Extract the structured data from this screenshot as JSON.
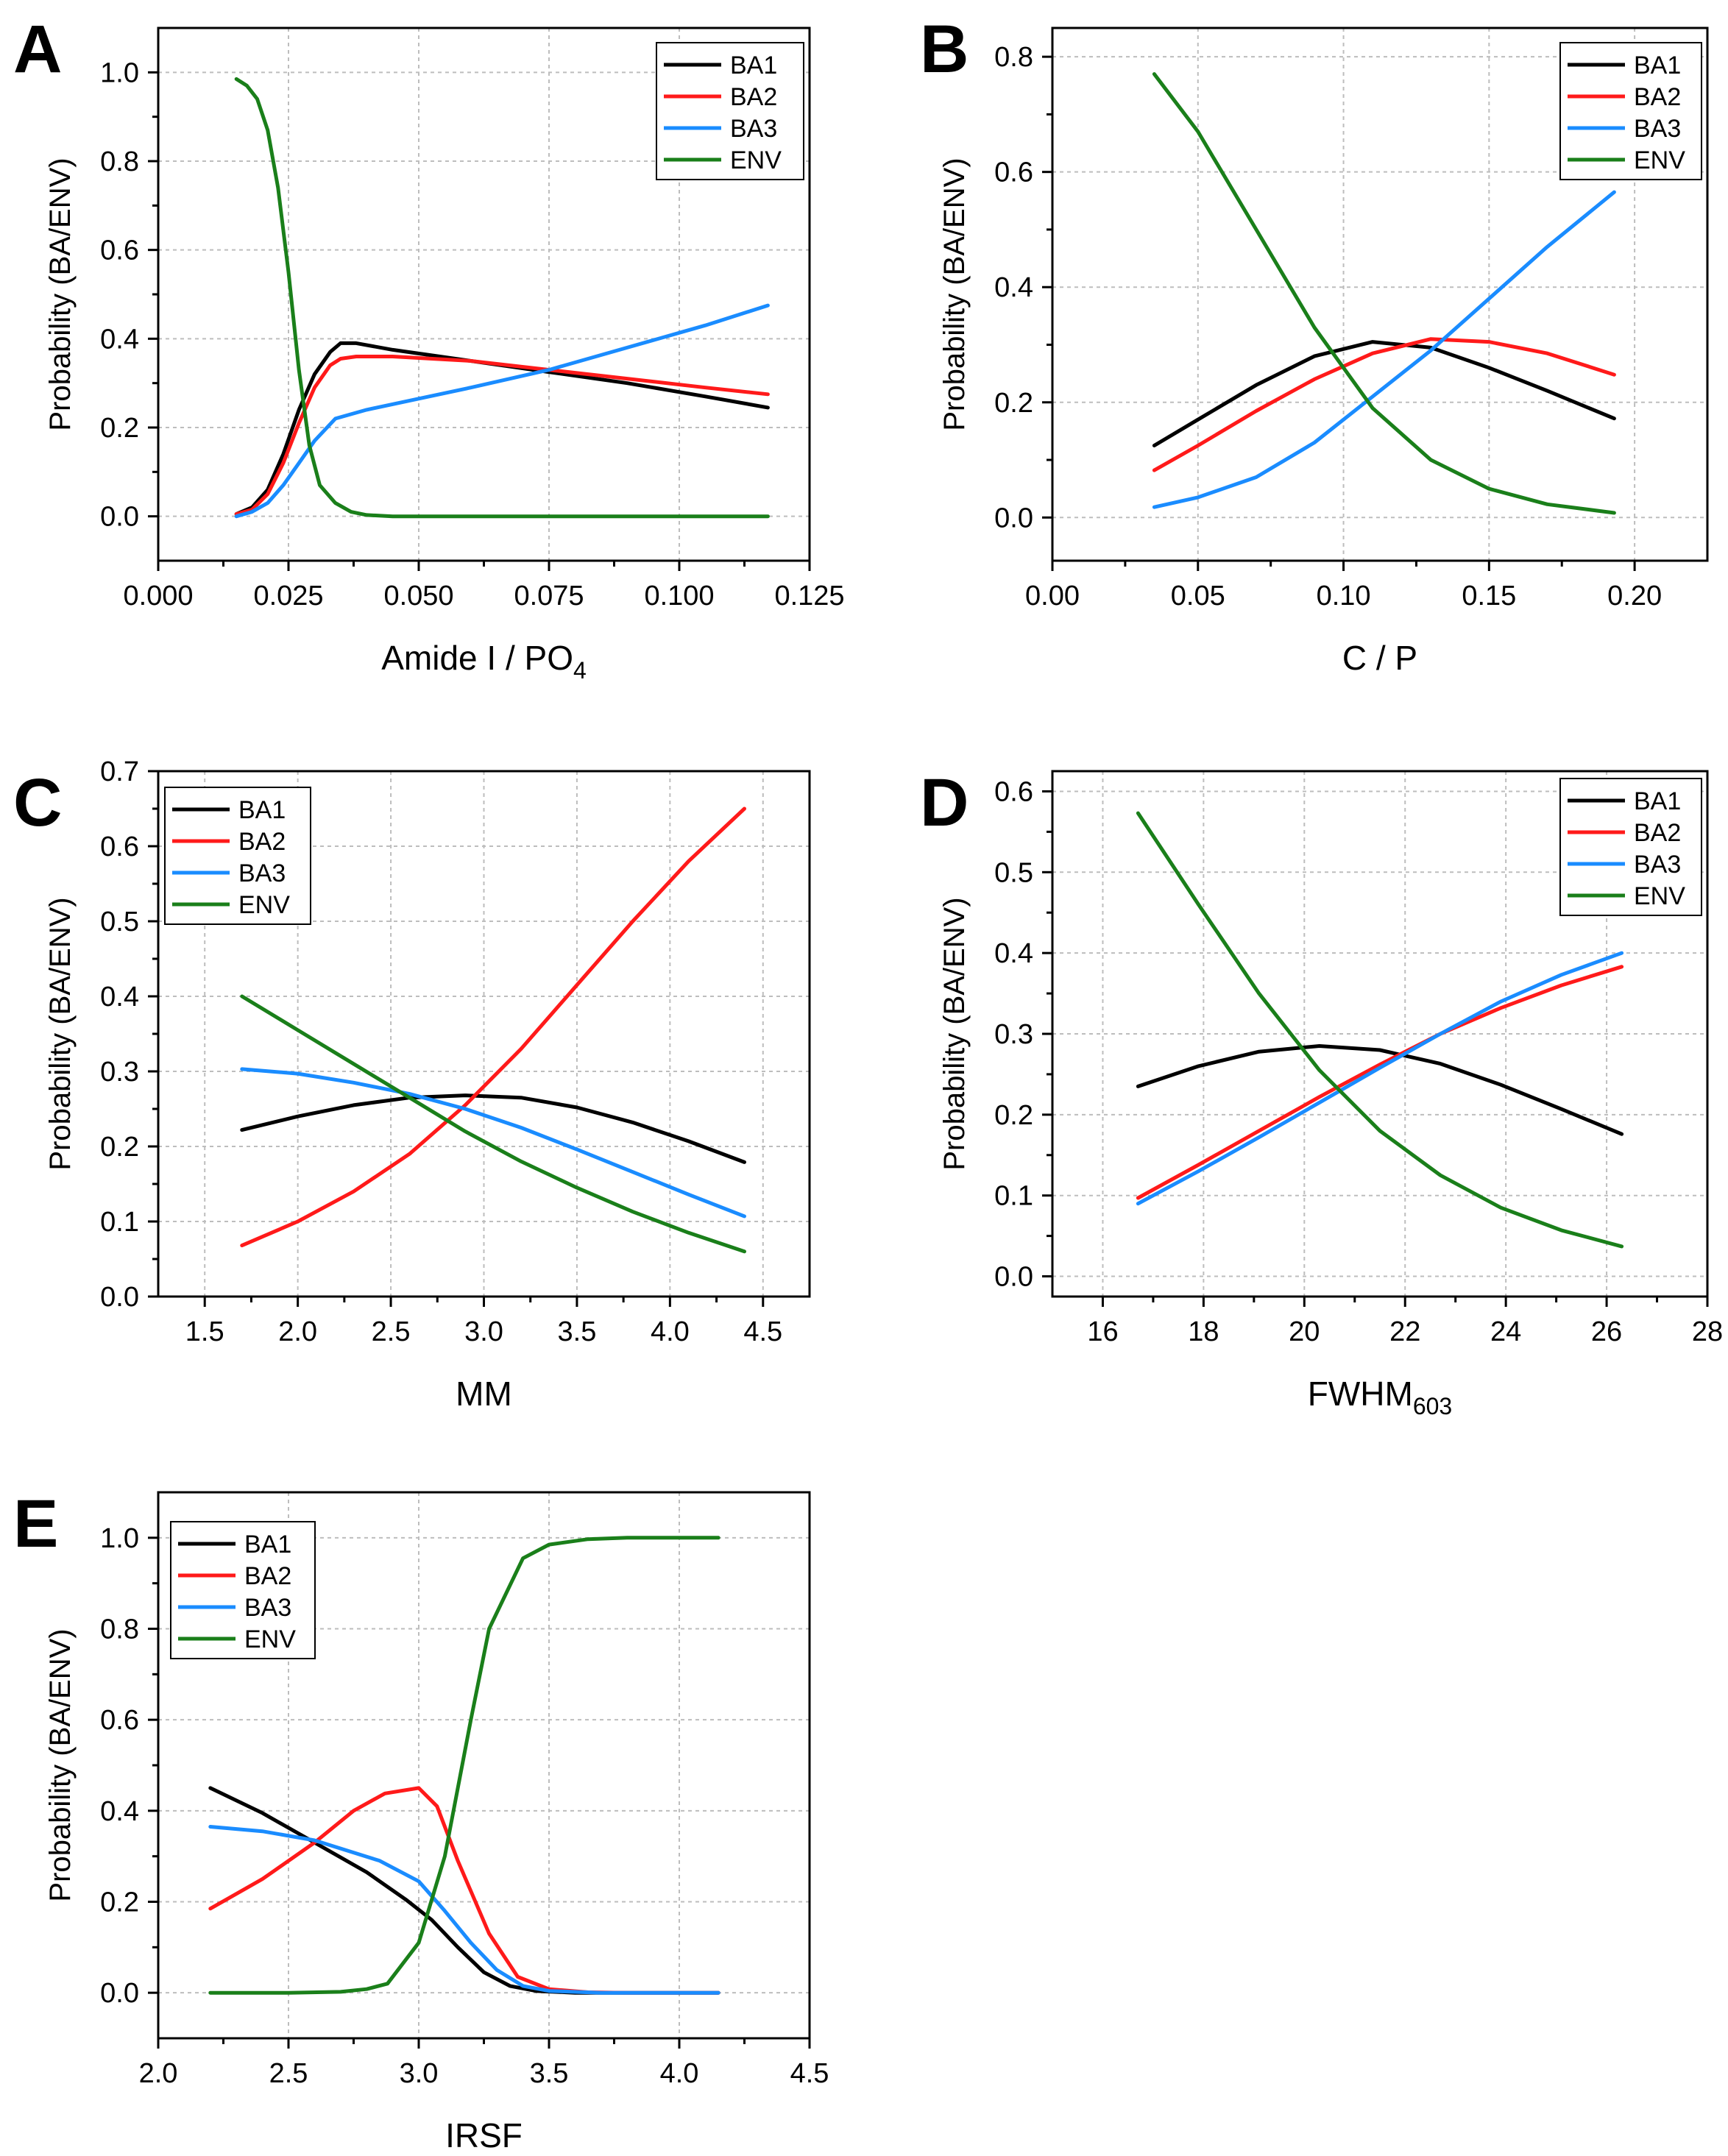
{
  "figure": {
    "series_colors": {
      "BA1": "#000000",
      "BA2": "#ff1a1a",
      "BA3": "#1a8cff",
      "ENV": "#1a7f1a"
    }
  },
  "chart_data": [
    {
      "panel": "A",
      "type": "line",
      "title": "",
      "xlabel": "Amide I / PO",
      "xlabel_sub": "4",
      "ylabel": "Probability (BA/ENV)",
      "xlim": [
        0.0,
        0.125
      ],
      "ylim": [
        -0.1,
        1.1
      ],
      "xticks": [
        0.0,
        0.025,
        0.05,
        0.075,
        0.1,
        0.125
      ],
      "xtick_labels": [
        "0.000",
        "0.025",
        "0.050",
        "0.075",
        "0.100",
        "0.125"
      ],
      "yticks": [
        0.0,
        0.2,
        0.4,
        0.6,
        0.8,
        1.0
      ],
      "ytick_labels": [
        "0.0",
        "0.2",
        "0.4",
        "0.6",
        "0.8",
        "1.0"
      ],
      "grid": true,
      "legend": "top-right",
      "series": [
        {
          "name": "BA1",
          "x": [
            0.015,
            0.018,
            0.021,
            0.024,
            0.027,
            0.03,
            0.033,
            0.035,
            0.038,
            0.045,
            0.06,
            0.075,
            0.09,
            0.105,
            0.117
          ],
          "y": [
            0.005,
            0.02,
            0.06,
            0.14,
            0.24,
            0.32,
            0.37,
            0.39,
            0.39,
            0.375,
            0.35,
            0.325,
            0.3,
            0.27,
            0.245
          ]
        },
        {
          "name": "BA2",
          "x": [
            0.015,
            0.018,
            0.021,
            0.024,
            0.027,
            0.03,
            0.033,
            0.035,
            0.038,
            0.045,
            0.06,
            0.075,
            0.09,
            0.105,
            0.117
          ],
          "y": [
            0.005,
            0.015,
            0.05,
            0.12,
            0.21,
            0.29,
            0.34,
            0.355,
            0.36,
            0.36,
            0.35,
            0.33,
            0.31,
            0.29,
            0.275
          ]
        },
        {
          "name": "BA3",
          "x": [
            0.015,
            0.018,
            0.021,
            0.024,
            0.027,
            0.03,
            0.034,
            0.04,
            0.05,
            0.06,
            0.075,
            0.09,
            0.105,
            0.117
          ],
          "y": [
            0.0,
            0.01,
            0.03,
            0.07,
            0.12,
            0.17,
            0.22,
            0.24,
            0.265,
            0.29,
            0.33,
            0.38,
            0.43,
            0.475
          ]
        },
        {
          "name": "ENV",
          "x": [
            0.015,
            0.017,
            0.019,
            0.021,
            0.023,
            0.025,
            0.027,
            0.029,
            0.031,
            0.034,
            0.037,
            0.04,
            0.045,
            0.06,
            0.08,
            0.1,
            0.117
          ],
          "y": [
            0.985,
            0.97,
            0.94,
            0.87,
            0.74,
            0.55,
            0.33,
            0.16,
            0.07,
            0.03,
            0.01,
            0.003,
            0.0,
            0.0,
            0.0,
            0.0,
            0.0
          ]
        }
      ]
    },
    {
      "panel": "B",
      "type": "line",
      "title": "",
      "xlabel": "C / P",
      "xlabel_sub": "",
      "ylabel": "Probability (BA/ENV)",
      "xlim": [
        0.0,
        0.225
      ],
      "ylim": [
        -0.075,
        0.85
      ],
      "xticks": [
        0.0,
        0.05,
        0.1,
        0.15,
        0.2
      ],
      "xtick_labels": [
        "0.00",
        "0.05",
        "0.10",
        "0.15",
        "0.20"
      ],
      "yticks": [
        0.0,
        0.2,
        0.4,
        0.6,
        0.8
      ],
      "ytick_labels": [
        "0.0",
        "0.2",
        "0.4",
        "0.6",
        "0.8"
      ],
      "grid": true,
      "legend": "top-right",
      "series": [
        {
          "name": "BA1",
          "x": [
            0.035,
            0.05,
            0.07,
            0.09,
            0.11,
            0.13,
            0.15,
            0.17,
            0.193
          ],
          "y": [
            0.125,
            0.17,
            0.23,
            0.28,
            0.305,
            0.295,
            0.26,
            0.22,
            0.172
          ]
        },
        {
          "name": "BA2",
          "x": [
            0.035,
            0.05,
            0.07,
            0.09,
            0.11,
            0.13,
            0.15,
            0.17,
            0.193
          ],
          "y": [
            0.082,
            0.125,
            0.185,
            0.24,
            0.285,
            0.31,
            0.305,
            0.285,
            0.248
          ]
        },
        {
          "name": "BA3",
          "x": [
            0.035,
            0.05,
            0.07,
            0.09,
            0.11,
            0.13,
            0.15,
            0.17,
            0.193
          ],
          "y": [
            0.018,
            0.035,
            0.07,
            0.13,
            0.21,
            0.29,
            0.38,
            0.47,
            0.565
          ]
        },
        {
          "name": "ENV",
          "x": [
            0.035,
            0.05,
            0.07,
            0.09,
            0.11,
            0.13,
            0.15,
            0.17,
            0.193
          ],
          "y": [
            0.77,
            0.67,
            0.5,
            0.33,
            0.19,
            0.1,
            0.05,
            0.023,
            0.008
          ]
        }
      ]
    },
    {
      "panel": "C",
      "type": "line",
      "title": "",
      "xlabel": "MM",
      "xlabel_sub": "",
      "ylabel": "Probability (BA/ENV)",
      "xlim": [
        1.25,
        4.75
      ],
      "ylim": [
        0.0,
        0.7
      ],
      "xticks": [
        1.5,
        2.0,
        2.5,
        3.0,
        3.5,
        4.0,
        4.5
      ],
      "xtick_labels": [
        "1.5",
        "2.0",
        "2.5",
        "3.0",
        "3.5",
        "4.0",
        "4.5"
      ],
      "yticks": [
        0.0,
        0.1,
        0.2,
        0.3,
        0.4,
        0.5,
        0.6,
        0.7
      ],
      "ytick_labels": [
        "0.0",
        "0.1",
        "0.2",
        "0.3",
        "0.4",
        "0.5",
        "0.6",
        "0.7"
      ],
      "grid": true,
      "legend": "top-left",
      "series": [
        {
          "name": "BA1",
          "x": [
            1.7,
            2.0,
            2.3,
            2.6,
            2.9,
            3.2,
            3.5,
            3.8,
            4.1,
            4.4
          ],
          "y": [
            0.222,
            0.24,
            0.255,
            0.265,
            0.268,
            0.265,
            0.252,
            0.232,
            0.207,
            0.179
          ]
        },
        {
          "name": "BA2",
          "x": [
            1.7,
            2.0,
            2.3,
            2.6,
            2.9,
            3.2,
            3.5,
            3.8,
            4.1,
            4.4
          ],
          "y": [
            0.068,
            0.1,
            0.14,
            0.19,
            0.255,
            0.33,
            0.415,
            0.5,
            0.58,
            0.65
          ]
        },
        {
          "name": "BA3",
          "x": [
            1.7,
            2.0,
            2.3,
            2.6,
            2.9,
            3.2,
            3.5,
            3.8,
            4.1,
            4.4
          ],
          "y": [
            0.303,
            0.297,
            0.285,
            0.27,
            0.25,
            0.225,
            0.196,
            0.166,
            0.136,
            0.107
          ]
        },
        {
          "name": "ENV",
          "x": [
            1.7,
            2.0,
            2.3,
            2.6,
            2.9,
            3.2,
            3.5,
            3.8,
            4.1,
            4.4
          ],
          "y": [
            0.4,
            0.355,
            0.31,
            0.265,
            0.22,
            0.18,
            0.145,
            0.113,
            0.085,
            0.06
          ]
        }
      ]
    },
    {
      "panel": "D",
      "type": "line",
      "title": "",
      "xlabel": "FWHM",
      "xlabel_sub": "603",
      "ylabel": "Probability (BA/ENV)",
      "xlim": [
        15.0,
        28.0
      ],
      "ylim": [
        -0.025,
        0.625
      ],
      "xticks": [
        16,
        18,
        20,
        22,
        24,
        26,
        28
      ],
      "xtick_labels": [
        "16",
        "18",
        "20",
        "22",
        "24",
        "26",
        "28"
      ],
      "yticks": [
        0.0,
        0.1,
        0.2,
        0.3,
        0.4,
        0.5,
        0.6
      ],
      "ytick_labels": [
        "0.0",
        "0.1",
        "0.2",
        "0.3",
        "0.4",
        "0.5",
        "0.6"
      ],
      "grid": true,
      "legend": "top-right",
      "series": [
        {
          "name": "BA1",
          "x": [
            16.7,
            17.9,
            19.1,
            20.3,
            21.5,
            22.7,
            23.9,
            25.1,
            26.3
          ],
          "y": [
            0.235,
            0.26,
            0.278,
            0.285,
            0.28,
            0.263,
            0.237,
            0.207,
            0.176
          ]
        },
        {
          "name": "BA2",
          "x": [
            16.7,
            17.9,
            19.1,
            20.3,
            21.5,
            22.7,
            23.9,
            25.1,
            26.3
          ],
          "y": [
            0.097,
            0.138,
            0.18,
            0.222,
            0.262,
            0.3,
            0.332,
            0.36,
            0.383
          ]
        },
        {
          "name": "BA3",
          "x": [
            16.7,
            17.9,
            19.1,
            20.3,
            21.5,
            22.7,
            23.9,
            25.1,
            26.3
          ],
          "y": [
            0.09,
            0.13,
            0.172,
            0.215,
            0.258,
            0.3,
            0.34,
            0.373,
            0.4
          ]
        },
        {
          "name": "ENV",
          "x": [
            16.7,
            17.9,
            19.1,
            20.3,
            21.5,
            22.7,
            23.9,
            25.1,
            26.3
          ],
          "y": [
            0.573,
            0.46,
            0.35,
            0.255,
            0.18,
            0.125,
            0.085,
            0.057,
            0.037
          ]
        }
      ]
    },
    {
      "panel": "E",
      "type": "line",
      "title": "",
      "xlabel": "IRSF",
      "xlabel_sub": "",
      "ylabel": "Probability (BA/ENV)",
      "xlim": [
        2.0,
        4.5
      ],
      "ylim": [
        -0.1,
        1.1
      ],
      "xticks": [
        2.0,
        2.5,
        3.0,
        3.5,
        4.0,
        4.5
      ],
      "xtick_labels": [
        "2.0",
        "2.5",
        "3.0",
        "3.5",
        "4.0",
        "4.5"
      ],
      "yticks": [
        0.0,
        0.2,
        0.4,
        0.6,
        0.8,
        1.0
      ],
      "ytick_labels": [
        "0.0",
        "0.2",
        "0.4",
        "0.6",
        "0.8",
        "1.0"
      ],
      "grid": true,
      "legend": "top-left",
      "series": [
        {
          "name": "BA1",
          "x": [
            2.2,
            2.4,
            2.6,
            2.8,
            2.95,
            3.05,
            3.15,
            3.25,
            3.35,
            3.45,
            3.6,
            3.8,
            4.15
          ],
          "y": [
            0.45,
            0.395,
            0.33,
            0.265,
            0.205,
            0.16,
            0.1,
            0.045,
            0.015,
            0.004,
            0.0,
            0.0,
            0.0
          ]
        },
        {
          "name": "BA2",
          "x": [
            2.2,
            2.4,
            2.6,
            2.75,
            2.87,
            3.0,
            3.07,
            3.15,
            3.27,
            3.38,
            3.5,
            3.65,
            3.8,
            4.15
          ],
          "y": [
            0.185,
            0.25,
            0.33,
            0.4,
            0.438,
            0.45,
            0.41,
            0.29,
            0.13,
            0.035,
            0.008,
            0.001,
            0.0,
            0.0
          ]
        },
        {
          "name": "BA3",
          "x": [
            2.2,
            2.4,
            2.6,
            2.85,
            3.0,
            3.1,
            3.2,
            3.3,
            3.4,
            3.5,
            3.7,
            4.15
          ],
          "y": [
            0.365,
            0.355,
            0.335,
            0.29,
            0.245,
            0.18,
            0.11,
            0.05,
            0.015,
            0.004,
            0.0,
            0.0
          ]
        },
        {
          "name": "ENV",
          "x": [
            2.2,
            2.5,
            2.7,
            2.8,
            2.88,
            3.0,
            3.1,
            3.2,
            3.27,
            3.4,
            3.5,
            3.65,
            3.8,
            4.15
          ],
          "y": [
            0.0,
            0.0,
            0.002,
            0.008,
            0.02,
            0.11,
            0.3,
            0.6,
            0.8,
            0.955,
            0.985,
            0.997,
            1.0,
            1.0
          ]
        }
      ]
    }
  ]
}
